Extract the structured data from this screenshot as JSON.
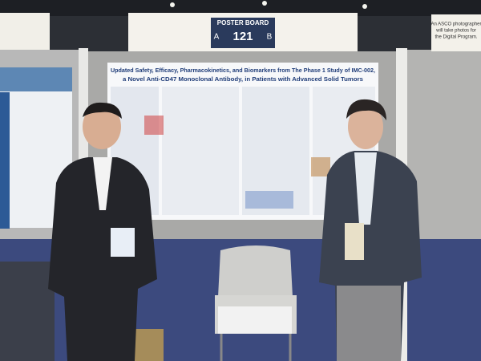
{
  "sign": {
    "label": "POSTER BOARD",
    "left": "A",
    "number": "121",
    "right": "B"
  },
  "notice": {
    "text_lines": [
      "An ASCO photographer",
      "will take photos for",
      "the Digital Program."
    ]
  },
  "poster": {
    "title_lines": [
      "Updated Safety, Efficacy, Pharmacokinetics, and Biomarkers from The Phase 1 Study of IMC-002,",
      "a Novel Anti-CD47 Monoclonal Antibody, in Patients with Advanced Solid Tumors"
    ]
  }
}
